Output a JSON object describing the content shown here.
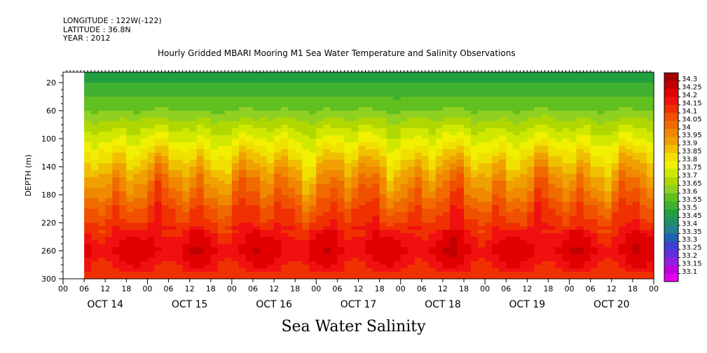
{
  "meta": {
    "longitude": "LONGITUDE : 122W(-122)",
    "latitude": "LATITUDE : 36.8N",
    "year": "YEAR : 2012"
  },
  "title": "Hourly Gridded MBARI Mooring M1 Sea Water Temperature and Salinity Observations",
  "footer": "Sea Water Salinity",
  "chart_data": {
    "type": "heatmap",
    "title": "Hourly Gridded MBARI Mooring M1 Sea Water Temperature and Salinity Observations",
    "variable": "Sea Water Salinity",
    "xlabel": "",
    "ylabel": "DEPTH (m)",
    "ylim": [
      300,
      0
    ],
    "yticks": [
      20,
      60,
      100,
      140,
      180,
      220,
      260,
      300
    ],
    "xhour_ticks": [
      "00",
      "06",
      "12",
      "18",
      "00",
      "06",
      "12",
      "18",
      "00",
      "06",
      "12",
      "18",
      "00",
      "06",
      "12",
      "18",
      "00",
      "06",
      "12",
      "18",
      "00",
      "06",
      "12",
      "18",
      "00",
      "06",
      "12",
      "18",
      "00"
    ],
    "xday_labels": [
      "OCT 14",
      "OCT 15",
      "OCT 16",
      "OCT 17",
      "OCT 18",
      "OCT 19",
      "OCT 20"
    ],
    "xrange_hours": [
      0,
      168
    ],
    "data_start_hour": 6,
    "colorbar": {
      "levels": [
        "34.3",
        "34.25",
        "34.2",
        "34.15",
        "34.1",
        "34.05",
        "34",
        "33.95",
        "33.9",
        "33.85",
        "33.8",
        "33.75",
        "33.7",
        "33.65",
        "33.6",
        "33.55",
        "33.5",
        "33.45",
        "33.4",
        "33.35",
        "33.3",
        "33.25",
        "33.2",
        "33.15",
        "33.1"
      ],
      "colors": [
        "#a00000",
        "#c00000",
        "#e00000",
        "#f01010",
        "#f03000",
        "#f05000",
        "#f06a00",
        "#f08800",
        "#f0a000",
        "#f0c000",
        "#f0e000",
        "#f0f000",
        "#d0e800",
        "#b0d800",
        "#90d020",
        "#60c020",
        "#40b030",
        "#20a040",
        "#209060",
        "#208090",
        "#2060b0",
        "#4040d0",
        "#6030e0",
        "#9020e0",
        "#c000e0",
        "#e000f0"
      ]
    },
    "profile": {
      "depth": [
        0,
        20,
        40,
        60,
        80,
        100,
        120,
        140,
        160,
        180,
        200,
        220,
        240,
        260,
        280,
        300
      ],
      "salinity": [
        33.45,
        33.5,
        33.55,
        33.6,
        33.68,
        33.75,
        33.83,
        33.9,
        33.97,
        34.02,
        34.08,
        34.12,
        34.18,
        34.22,
        34.17,
        34.13
      ]
    }
  }
}
